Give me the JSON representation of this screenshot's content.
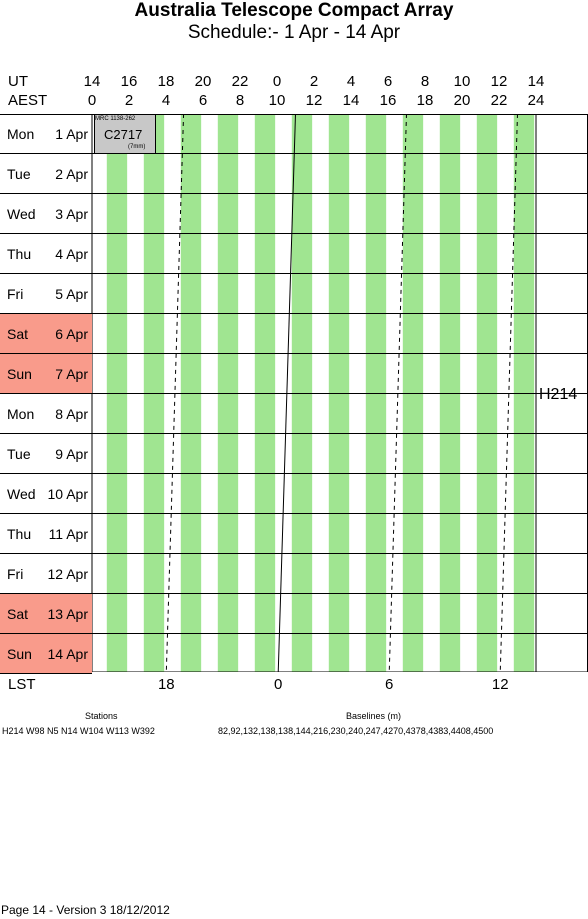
{
  "header": {
    "title": "Australia Telescope Compact Array",
    "subtitle": "Schedule:- 1  Apr - 14 Apr"
  },
  "axis": {
    "ut_label": "UT",
    "aest_label": "AEST",
    "ut_hours": [
      "14",
      "16",
      "18",
      "20",
      "22",
      "0",
      "2",
      "4",
      "6",
      "8",
      "10",
      "12",
      "14"
    ],
    "aest_hours": [
      "0",
      "2",
      "4",
      "6",
      "8",
      "10",
      "12",
      "14",
      "16",
      "18",
      "20",
      "22",
      "24"
    ],
    "lst_label": "LST",
    "lst_ticks": [
      "18",
      "0",
      "6",
      "12"
    ]
  },
  "days": [
    {
      "name": "Mon",
      "date": "1  Apr",
      "weekend": false
    },
    {
      "name": "Tue",
      "date": "2  Apr",
      "weekend": false
    },
    {
      "name": "Wed",
      "date": "3  Apr",
      "weekend": false
    },
    {
      "name": "Thu",
      "date": "4  Apr",
      "weekend": false
    },
    {
      "name": "Fri",
      "date": "5  Apr",
      "weekend": false
    },
    {
      "name": "Sat",
      "date": "6  Apr",
      "weekend": true
    },
    {
      "name": "Sun",
      "date": "7  Apr",
      "weekend": true
    },
    {
      "name": "Mon",
      "date": "8  Apr",
      "weekend": false
    },
    {
      "name": "Tue",
      "date": "9  Apr",
      "weekend": false
    },
    {
      "name": "Wed",
      "date": "10 Apr",
      "weekend": false
    },
    {
      "name": "Thu",
      "date": "11 Apr",
      "weekend": false
    },
    {
      "name": "Fri",
      "date": "12 Apr",
      "weekend": false
    },
    {
      "name": "Sat",
      "date": "13 Apr",
      "weekend": true
    },
    {
      "name": "Sun",
      "date": "14 Apr",
      "weekend": true
    }
  ],
  "booking": {
    "source": "MRC 1138-262",
    "project": "C2717",
    "note": "(7mm)"
  },
  "configuration": "H214",
  "footer": {
    "stations_label": "Stations",
    "stations_value": "H214   W98 N5 N14 W104 W113 W392",
    "baselines_label": "Baselines (m)",
    "baselines_value": "82,92,132,138,138,144,216,230,240,247,4270,4378,4383,4408,4500",
    "page_info": "Page 14 - Version 3  18/12/2012"
  },
  "colors": {
    "green_stripe": "#a0e591",
    "weekend": "#f99b8b",
    "booking": "#c8c8c8"
  }
}
